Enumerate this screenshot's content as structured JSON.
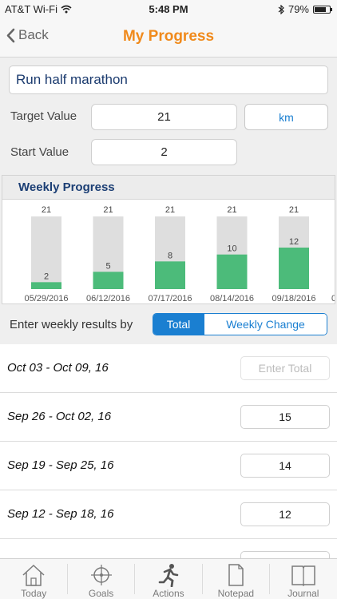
{
  "status_bar": {
    "carrier": "AT&T Wi-Fi",
    "time": "5:48 PM",
    "battery": "79%",
    "battery_level": 0.79
  },
  "nav": {
    "back_label": "Back",
    "title": "My Progress"
  },
  "goal": {
    "name": "Run half marathon"
  },
  "target": {
    "label": "Target Value",
    "value": "21",
    "unit": "km"
  },
  "start": {
    "label": "Start Value",
    "value": "2"
  },
  "weekly": {
    "title": "Weekly Progress"
  },
  "chart_data": {
    "type": "bar",
    "categories": [
      "05/29/2016",
      "06/12/2016",
      "07/17/2016",
      "08/14/2016",
      "09/18/2016"
    ],
    "values": [
      2,
      5,
      8,
      10,
      12
    ],
    "targets": [
      21,
      21,
      21,
      21,
      21
    ],
    "ylim": [
      0,
      21
    ],
    "colors": {
      "bar": "#4cbb7a",
      "track": "#dedede"
    },
    "partial_next_label": "0"
  },
  "entry": {
    "label": "Enter weekly results by",
    "options": [
      "Total",
      "Weekly Change"
    ],
    "selected": "Total"
  },
  "weeks": [
    {
      "range": "Oct 03 - Oct 09, 16",
      "value": "",
      "placeholder": "Enter Total"
    },
    {
      "range": "Sep 26 - Oct 02, 16",
      "value": "15"
    },
    {
      "range": "Sep 19 - Sep 25, 16",
      "value": "14"
    },
    {
      "range": "Sep 12 - Sep 18, 16",
      "value": "12"
    },
    {
      "range": "",
      "value": ""
    }
  ],
  "tabs": [
    {
      "label": "Today",
      "icon": "house-icon"
    },
    {
      "label": "Goals",
      "icon": "crosshair-icon"
    },
    {
      "label": "Actions",
      "icon": "runner-icon"
    },
    {
      "label": "Notepad",
      "icon": "notepad-icon"
    },
    {
      "label": "Journal",
      "icon": "book-icon"
    }
  ]
}
